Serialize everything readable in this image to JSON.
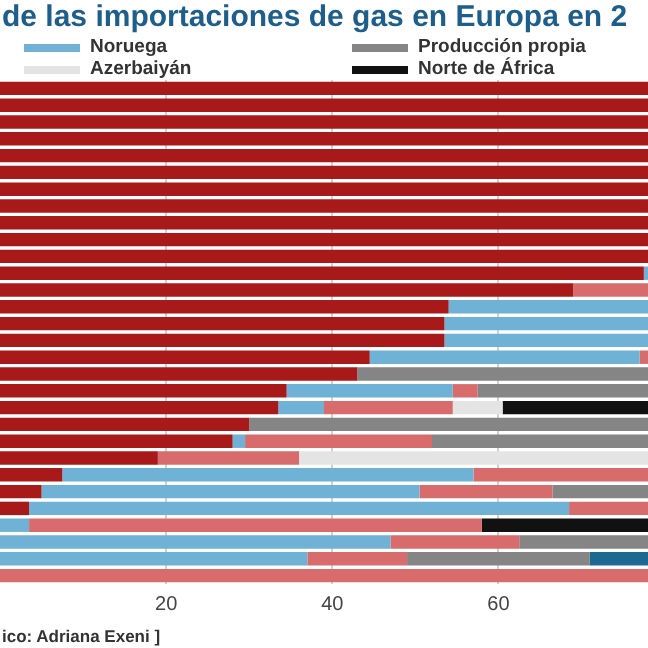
{
  "chart_data": {
    "type": "bar",
    "orientation": "horizontal",
    "stacked": true,
    "title": "de las importaciones de gas en Europa en 2",
    "categories": [
      null,
      null,
      null,
      null,
      null,
      null,
      null,
      null,
      null,
      null,
      null,
      null,
      null,
      null,
      null,
      null,
      null,
      null,
      null,
      null,
      null,
      null,
      null,
      null,
      null,
      null,
      null,
      null,
      null,
      null
    ],
    "series": [
      {
        "color": "#a81a1a",
        "values": [
          78,
          78,
          78,
          78,
          78,
          78,
          78,
          78,
          78,
          78,
          78,
          77.5,
          69,
          54,
          53.5,
          53.5,
          44.5,
          43,
          34.5,
          33.5,
          30,
          28,
          19,
          7.5,
          5,
          3.5,
          null,
          null,
          null,
          null
        ]
      },
      {
        "name": "Noruega",
        "color": "#6fb2d6",
        "values": [
          null,
          null,
          null,
          null,
          null,
          null,
          null,
          null,
          null,
          null,
          null,
          0.5,
          null,
          24,
          24.5,
          24.5,
          32.5,
          null,
          20,
          5.5,
          null,
          1.5,
          null,
          49.5,
          45.5,
          65,
          3.5,
          47,
          37,
          null
        ]
      },
      {
        "color": "#d86c6c",
        "values": [
          null,
          null,
          null,
          null,
          null,
          null,
          null,
          null,
          null,
          null,
          null,
          null,
          9,
          null,
          null,
          null,
          1,
          null,
          3,
          15.5,
          null,
          22.5,
          17,
          21,
          16,
          9.5,
          54.5,
          15.5,
          12,
          78
        ]
      },
      {
        "name": "Producción propia",
        "color": "#858585",
        "values": [
          null,
          null,
          null,
          null,
          null,
          null,
          null,
          null,
          null,
          null,
          null,
          null,
          null,
          null,
          null,
          null,
          null,
          35,
          20.5,
          null,
          48,
          26,
          null,
          null,
          11.5,
          null,
          null,
          15.5,
          22,
          null
        ]
      },
      {
        "name": "Azerbaiyán",
        "color": "#e4e4e4",
        "values": [
          null,
          null,
          null,
          null,
          null,
          null,
          null,
          null,
          null,
          null,
          null,
          null,
          null,
          null,
          null,
          null,
          null,
          null,
          null,
          6,
          null,
          null,
          42,
          null,
          null,
          null,
          null,
          null,
          null,
          null
        ]
      },
      {
        "name": "Norte de África",
        "color": "#111111",
        "values": [
          null,
          null,
          null,
          null,
          null,
          null,
          null,
          null,
          null,
          null,
          null,
          null,
          null,
          null,
          null,
          null,
          null,
          null,
          null,
          17.5,
          null,
          null,
          null,
          null,
          null,
          null,
          20,
          null,
          null,
          null
        ]
      },
      {
        "color": "#1c6a92",
        "values": [
          null,
          null,
          null,
          null,
          null,
          null,
          null,
          null,
          null,
          null,
          null,
          null,
          null,
          null,
          null,
          null,
          null,
          null,
          null,
          null,
          null,
          null,
          null,
          null,
          null,
          null,
          null,
          null,
          7,
          null
        ]
      }
    ],
    "xlim": [
      0,
      78
    ],
    "xticks": [
      20,
      40,
      60
    ],
    "grid": "x",
    "tick_labels": "x",
    "legend": "top",
    "annotations": [
      "ico: Adriana Exeni ]"
    ]
  }
}
